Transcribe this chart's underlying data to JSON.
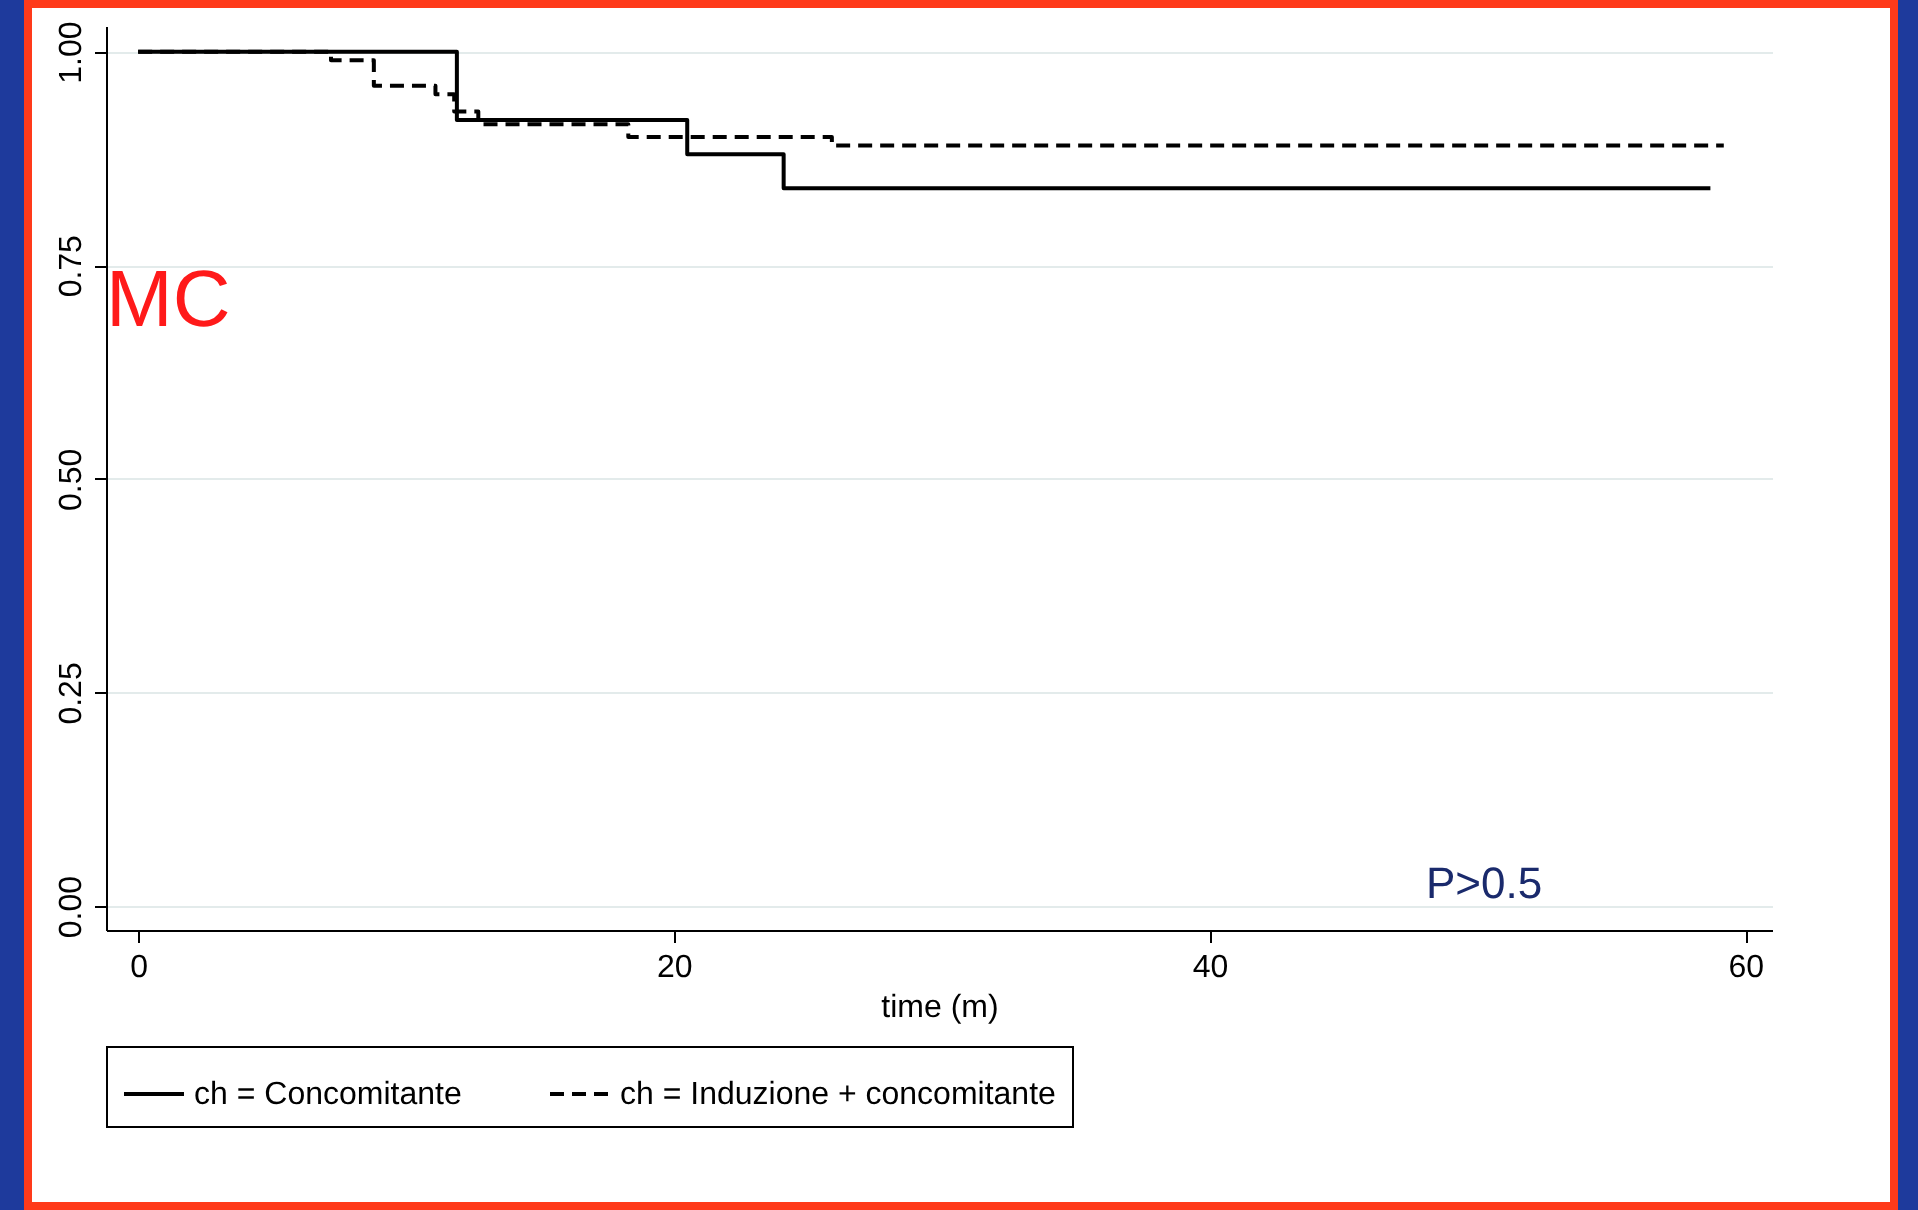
{
  "chart_data": {
    "type": "step",
    "xlabel": "time (m)",
    "xlim": [
      -1.2,
      61
    ],
    "xticks": [
      0,
      20,
      40,
      60
    ],
    "ylim": [
      -0.028,
      1.03
    ],
    "yticks": [
      {
        "value": 0,
        "label": "0.00"
      },
      {
        "value": 0.25,
        "label": "0.25"
      },
      {
        "value": 0.5,
        "label": "0.50"
      },
      {
        "value": 0.75,
        "label": "0.75"
      },
      {
        "value": 1,
        "label": "1.00"
      }
    ],
    "grid": "y",
    "legend": "bottom",
    "annotations": [
      "MC",
      "P>0.5"
    ],
    "series": [
      {
        "name": "ch = Concomitante",
        "color": "#000000",
        "line_style": "solid",
        "x": [
          0,
          11.9,
          20.5,
          24.1,
          58.7
        ],
        "values": [
          1,
          0.92,
          0.88,
          0.84,
          0.84
        ]
      },
      {
        "name": "ch = Induzione + concomitante",
        "color": "#000000",
        "line_style": "dashed",
        "x": [
          0,
          7.2,
          8.8,
          11.1,
          11.8,
          12.7,
          18.3,
          25.9,
          59.2
        ],
        "values": [
          1,
          0.99,
          0.96,
          0.95,
          0.93,
          0.915,
          0.9,
          0.89,
          0.89
        ]
      }
    ]
  }
}
